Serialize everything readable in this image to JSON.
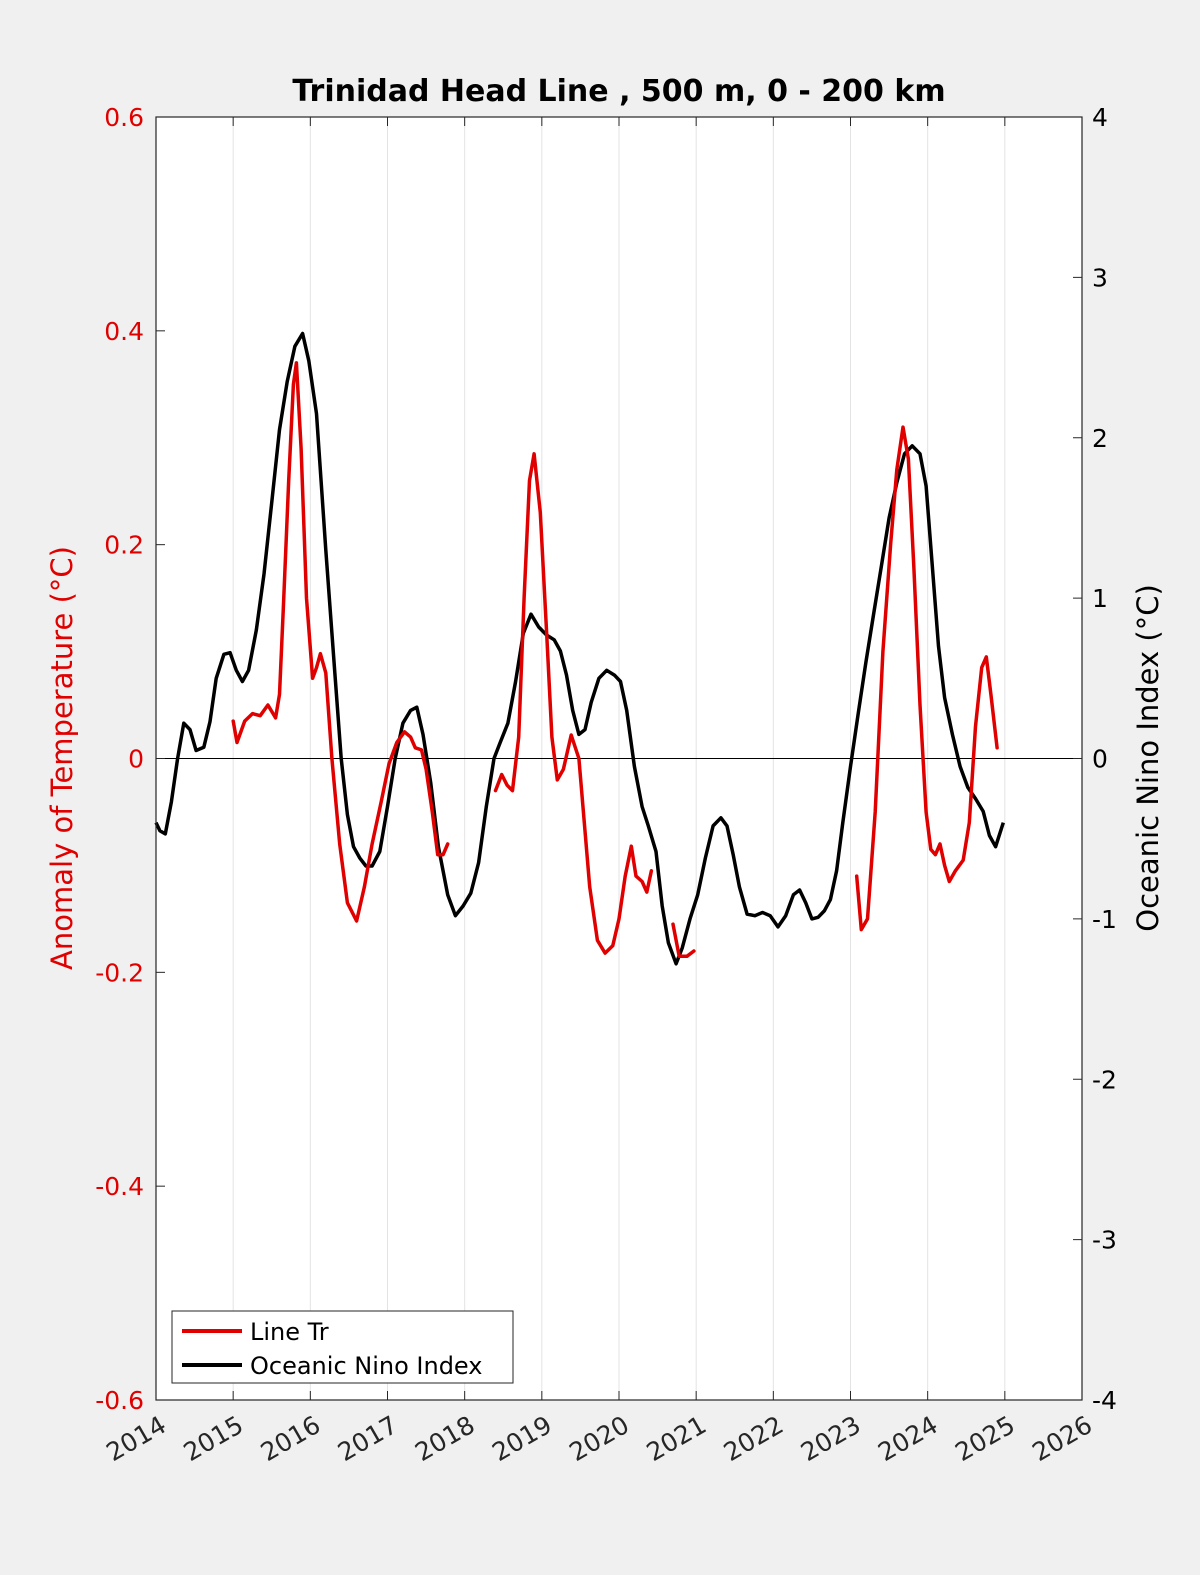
{
  "chart_data": {
    "type": "line",
    "title": "Trinidad Head Line , 500 m, 0 - 200 km",
    "xlim": [
      2014,
      2026
    ],
    "x_ticks": [
      "2014",
      "2015",
      "2016",
      "2017",
      "2018",
      "2019",
      "2020",
      "2021",
      "2022",
      "2023",
      "2024",
      "2025",
      "2026"
    ],
    "y_left": {
      "label": "Anomaly of Temperature (°C)",
      "lim": [
        -0.6,
        0.6
      ],
      "ticks": [
        "-0.6",
        "-0.4",
        "-0.2",
        "0",
        "0.2",
        "0.4",
        "0.6"
      ],
      "color": "#e00000"
    },
    "y_right": {
      "label": "Oceanic Nino Index (°C)",
      "lim": [
        -4,
        4
      ],
      "ticks": [
        "-4",
        "-3",
        "-2",
        "-1",
        "0",
        "1",
        "2",
        "3",
        "4"
      ],
      "color": "#000000"
    },
    "grid": "vertical",
    "legend_position": "bottom-left",
    "series": [
      {
        "name": "Line Tr",
        "axis": "left",
        "color": "#e00000",
        "segments": [
          [
            [
              2015.0,
              0.035
            ],
            [
              2015.05,
              0.015
            ],
            [
              2015.15,
              0.035
            ],
            [
              2015.25,
              0.042
            ],
            [
              2015.35,
              0.04
            ],
            [
              2015.45,
              0.05
            ],
            [
              2015.55,
              0.038
            ],
            [
              2015.6,
              0.06
            ],
            [
              2015.65,
              0.14
            ],
            [
              2015.72,
              0.26
            ],
            [
              2015.78,
              0.35
            ],
            [
              2015.82,
              0.37
            ],
            [
              2015.88,
              0.29
            ],
            [
              2015.95,
              0.15
            ],
            [
              2016.03,
              0.075
            ],
            [
              2016.08,
              0.085
            ],
            [
              2016.13,
              0.098
            ],
            [
              2016.2,
              0.08
            ],
            [
              2016.28,
              0.0
            ],
            [
              2016.38,
              -0.08
            ],
            [
              2016.48,
              -0.135
            ],
            [
              2016.6,
              -0.152
            ],
            [
              2016.7,
              -0.12
            ],
            [
              2016.8,
              -0.08
            ],
            [
              2016.92,
              -0.04
            ],
            [
              2017.02,
              -0.005
            ],
            [
              2017.12,
              0.015
            ],
            [
              2017.22,
              0.025
            ],
            [
              2017.3,
              0.02
            ],
            [
              2017.36,
              0.01
            ],
            [
              2017.44,
              0.008
            ],
            [
              2017.5,
              -0.01
            ],
            [
              2017.58,
              -0.05
            ],
            [
              2017.65,
              -0.09
            ],
            [
              2017.72,
              -0.09
            ],
            [
              2017.78,
              -0.08
            ]
          ],
          [
            [
              2018.4,
              -0.03
            ],
            [
              2018.48,
              -0.015
            ],
            [
              2018.55,
              -0.025
            ],
            [
              2018.62,
              -0.03
            ],
            [
              2018.7,
              0.02
            ],
            [
              2018.77,
              0.15
            ],
            [
              2018.84,
              0.26
            ],
            [
              2018.9,
              0.285
            ],
            [
              2018.98,
              0.23
            ],
            [
              2019.06,
              0.12
            ],
            [
              2019.13,
              0.02
            ],
            [
              2019.2,
              -0.02
            ],
            [
              2019.28,
              -0.01
            ],
            [
              2019.38,
              0.022
            ],
            [
              2019.48,
              0.0
            ],
            [
              2019.55,
              -0.06
            ],
            [
              2019.62,
              -0.12
            ],
            [
              2019.72,
              -0.17
            ],
            [
              2019.82,
              -0.182
            ],
            [
              2019.92,
              -0.175
            ],
            [
              2020.0,
              -0.15
            ],
            [
              2020.08,
              -0.11
            ],
            [
              2020.16,
              -0.082
            ],
            [
              2020.22,
              -0.11
            ],
            [
              2020.3,
              -0.115
            ],
            [
              2020.36,
              -0.125
            ],
            [
              2020.42,
              -0.105
            ]
          ],
          [
            [
              2020.7,
              -0.155
            ],
            [
              2020.78,
              -0.185
            ],
            [
              2020.88,
              -0.185
            ],
            [
              2020.97,
              -0.18
            ]
          ],
          [
            [
              2023.08,
              -0.11
            ],
            [
              2023.14,
              -0.16
            ],
            [
              2023.22,
              -0.15
            ],
            [
              2023.32,
              -0.05
            ],
            [
              2023.42,
              0.1
            ],
            [
              2023.52,
              0.2
            ],
            [
              2023.6,
              0.27
            ],
            [
              2023.68,
              0.31
            ],
            [
              2023.75,
              0.28
            ],
            [
              2023.82,
              0.18
            ],
            [
              2023.9,
              0.05
            ],
            [
              2023.98,
              -0.05
            ],
            [
              2024.04,
              -0.085
            ],
            [
              2024.1,
              -0.09
            ],
            [
              2024.16,
              -0.08
            ],
            [
              2024.22,
              -0.1
            ],
            [
              2024.28,
              -0.115
            ],
            [
              2024.36,
              -0.105
            ],
            [
              2024.46,
              -0.095
            ],
            [
              2024.54,
              -0.06
            ],
            [
              2024.62,
              0.03
            ],
            [
              2024.7,
              0.085
            ],
            [
              2024.76,
              0.095
            ],
            [
              2024.82,
              0.06
            ],
            [
              2024.9,
              0.01
            ]
          ]
        ]
      },
      {
        "name": "Oceanic Nino Index",
        "axis": "right",
        "color": "#000000",
        "values": [
          [
            2014.0,
            -0.4
          ],
          [
            2014.05,
            -0.45
          ],
          [
            2014.12,
            -0.47
          ],
          [
            2014.2,
            -0.27
          ],
          [
            2014.28,
            0.0
          ],
          [
            2014.36,
            0.22
          ],
          [
            2014.44,
            0.18
          ],
          [
            2014.52,
            0.05
          ],
          [
            2014.62,
            0.07
          ],
          [
            2014.7,
            0.23
          ],
          [
            2014.78,
            0.5
          ],
          [
            2014.88,
            0.65
          ],
          [
            2014.96,
            0.66
          ],
          [
            2015.04,
            0.55
          ],
          [
            2015.12,
            0.48
          ],
          [
            2015.2,
            0.55
          ],
          [
            2015.3,
            0.8
          ],
          [
            2015.4,
            1.15
          ],
          [
            2015.5,
            1.6
          ],
          [
            2015.6,
            2.05
          ],
          [
            2015.7,
            2.35
          ],
          [
            2015.8,
            2.57
          ],
          [
            2015.9,
            2.65
          ],
          [
            2015.98,
            2.48
          ],
          [
            2016.08,
            2.15
          ],
          [
            2016.2,
            1.3
          ],
          [
            2016.32,
            0.52
          ],
          [
            2016.4,
            0.0
          ],
          [
            2016.48,
            -0.35
          ],
          [
            2016.56,
            -0.55
          ],
          [
            2016.64,
            -0.62
          ],
          [
            2016.72,
            -0.67
          ],
          [
            2016.8,
            -0.67
          ],
          [
            2016.9,
            -0.58
          ],
          [
            2017.0,
            -0.3
          ],
          [
            2017.1,
            0.0
          ],
          [
            2017.2,
            0.22
          ],
          [
            2017.3,
            0.3
          ],
          [
            2017.38,
            0.32
          ],
          [
            2017.46,
            0.15
          ],
          [
            2017.56,
            -0.15
          ],
          [
            2017.66,
            -0.55
          ],
          [
            2017.78,
            -0.85
          ],
          [
            2017.88,
            -0.98
          ],
          [
            2017.98,
            -0.92
          ],
          [
            2018.08,
            -0.84
          ],
          [
            2018.18,
            -0.65
          ],
          [
            2018.28,
            -0.3
          ],
          [
            2018.38,
            0.0
          ],
          [
            2018.46,
            0.1
          ],
          [
            2018.56,
            0.22
          ],
          [
            2018.66,
            0.48
          ],
          [
            2018.76,
            0.78
          ],
          [
            2018.86,
            0.9
          ],
          [
            2018.96,
            0.82
          ],
          [
            2019.06,
            0.77
          ],
          [
            2019.16,
            0.74
          ],
          [
            2019.24,
            0.67
          ],
          [
            2019.32,
            0.52
          ],
          [
            2019.4,
            0.3
          ],
          [
            2019.48,
            0.15
          ],
          [
            2019.56,
            0.18
          ],
          [
            2019.64,
            0.35
          ],
          [
            2019.74,
            0.5
          ],
          [
            2019.84,
            0.55
          ],
          [
            2019.94,
            0.52
          ],
          [
            2020.02,
            0.48
          ],
          [
            2020.1,
            0.3
          ],
          [
            2020.2,
            -0.05
          ],
          [
            2020.3,
            -0.3
          ],
          [
            2020.38,
            -0.42
          ],
          [
            2020.48,
            -0.58
          ],
          [
            2020.56,
            -0.92
          ],
          [
            2020.64,
            -1.15
          ],
          [
            2020.74,
            -1.28
          ],
          [
            2020.82,
            -1.18
          ],
          [
            2020.92,
            -1.0
          ],
          [
            2021.02,
            -0.85
          ],
          [
            2021.12,
            -0.62
          ],
          [
            2021.22,
            -0.42
          ],
          [
            2021.32,
            -0.37
          ],
          [
            2021.4,
            -0.42
          ],
          [
            2021.48,
            -0.6
          ],
          [
            2021.56,
            -0.8
          ],
          [
            2021.66,
            -0.97
          ],
          [
            2021.76,
            -0.98
          ],
          [
            2021.86,
            -0.96
          ],
          [
            2021.96,
            -0.98
          ],
          [
            2022.06,
            -1.05
          ],
          [
            2022.16,
            -0.98
          ],
          [
            2022.26,
            -0.85
          ],
          [
            2022.34,
            -0.82
          ],
          [
            2022.42,
            -0.9
          ],
          [
            2022.5,
            -1.0
          ],
          [
            2022.58,
            -0.99
          ],
          [
            2022.66,
            -0.95
          ],
          [
            2022.74,
            -0.88
          ],
          [
            2022.82,
            -0.7
          ],
          [
            2022.9,
            -0.4
          ],
          [
            2023.0,
            -0.05
          ],
          [
            2023.1,
            0.28
          ],
          [
            2023.2,
            0.6
          ],
          [
            2023.3,
            0.9
          ],
          [
            2023.4,
            1.2
          ],
          [
            2023.5,
            1.5
          ],
          [
            2023.6,
            1.72
          ],
          [
            2023.7,
            1.9
          ],
          [
            2023.8,
            1.95
          ],
          [
            2023.9,
            1.9
          ],
          [
            2023.98,
            1.7
          ],
          [
            2024.06,
            1.2
          ],
          [
            2024.14,
            0.7
          ],
          [
            2024.22,
            0.38
          ],
          [
            2024.32,
            0.15
          ],
          [
            2024.42,
            -0.05
          ],
          [
            2024.52,
            -0.18
          ],
          [
            2024.62,
            -0.25
          ],
          [
            2024.72,
            -0.33
          ],
          [
            2024.8,
            -0.48
          ],
          [
            2024.88,
            -0.55
          ],
          [
            2024.98,
            -0.4
          ]
        ]
      }
    ]
  }
}
